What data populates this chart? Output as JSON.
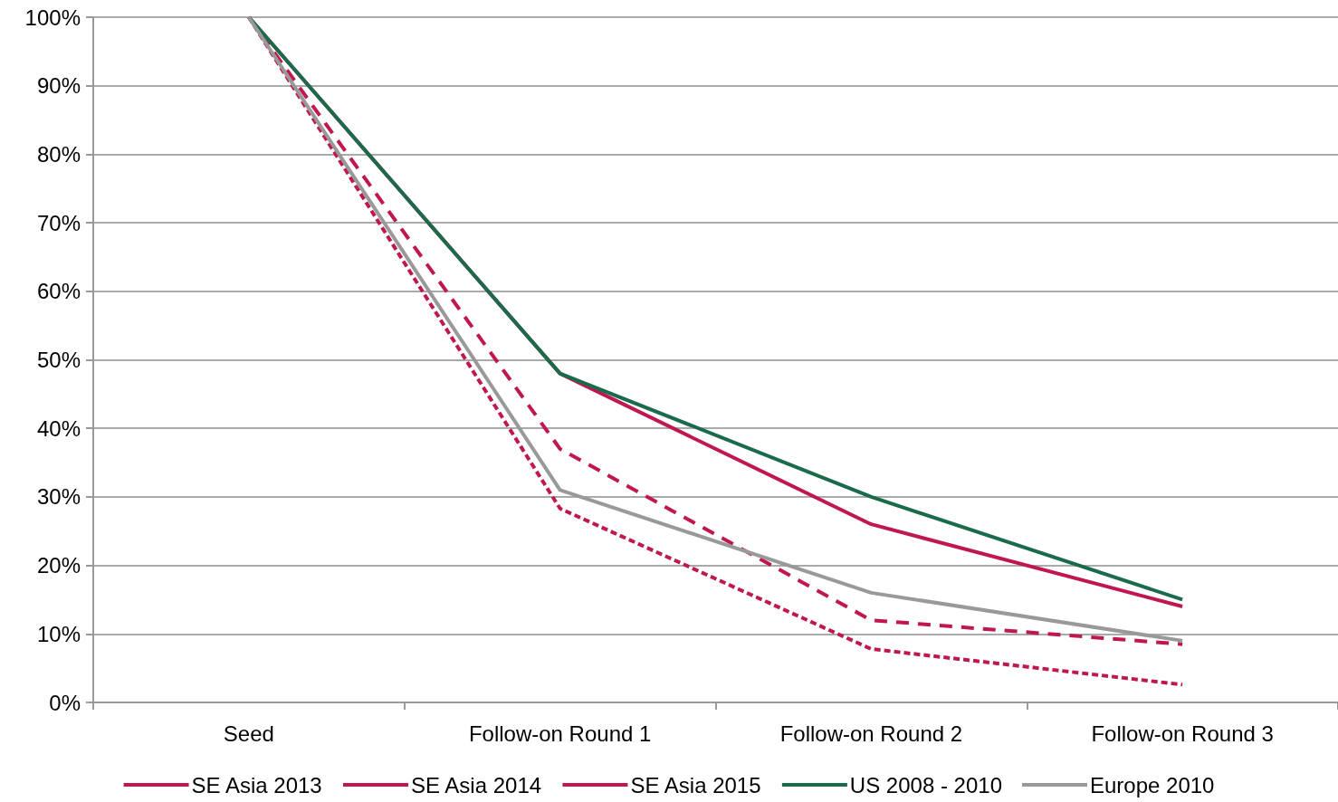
{
  "chart_data": {
    "type": "line",
    "categories": [
      "Seed",
      "Follow-on Round 1",
      "Follow-on Round 2",
      "Follow-on Round 3"
    ],
    "series": [
      {
        "name": "SE Asia 2013",
        "color": "#c0174f",
        "line_style": "solid",
        "values": [
          100,
          48,
          26,
          14
        ]
      },
      {
        "name": "SE Asia 2014",
        "color": "#c0174f",
        "line_style": "dashed",
        "values": [
          100,
          37,
          12,
          8.5
        ]
      },
      {
        "name": "SE Asia 2015",
        "color": "#c0174f",
        "line_style": "dotted",
        "values": [
          100,
          28.3,
          7.8,
          2.6
        ]
      },
      {
        "name": "US 2008 - 2010",
        "color": "#1a6b4a",
        "line_style": "solid",
        "values": [
          100,
          48,
          30,
          15
        ]
      },
      {
        "name": "Europe 2010",
        "color": "#999999",
        "line_style": "solid",
        "values": [
          100,
          31,
          16,
          9
        ]
      }
    ],
    "ylim": [
      0,
      100
    ],
    "yticks": [
      {
        "value": 0,
        "label": "0%"
      },
      {
        "value": 10,
        "label": "10%"
      },
      {
        "value": 20,
        "label": "20%"
      },
      {
        "value": 30,
        "label": "30%"
      },
      {
        "value": 40,
        "label": "40%"
      },
      {
        "value": 50,
        "label": "50%"
      },
      {
        "value": 60,
        "label": "60%"
      },
      {
        "value": 70,
        "label": "70%"
      },
      {
        "value": 80,
        "label": "80%"
      },
      {
        "value": 90,
        "label": "90%"
      },
      {
        "value": 100,
        "label": "100%"
      }
    ],
    "grid": "y",
    "legend": "bottom",
    "marker": "none"
  }
}
